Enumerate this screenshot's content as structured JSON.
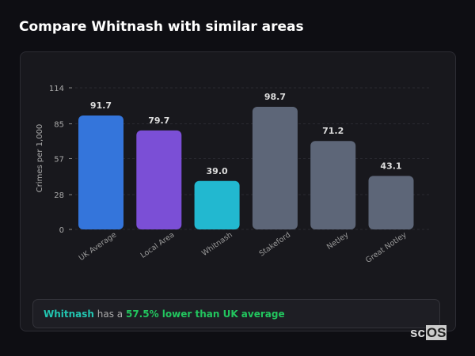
{
  "title": "Compare Whitnash with similar areas",
  "chart_data": {
    "type": "bar",
    "categories": [
      "UK Average",
      "Local Area",
      "Whitnash",
      "Stakeford",
      "Netley",
      "Great Notley"
    ],
    "values": [
      91.7,
      79.7,
      39.0,
      98.7,
      71.2,
      43.1
    ],
    "value_labels": [
      "91.7",
      "79.7",
      "39.0",
      "98.7",
      "71.2",
      "43.1"
    ],
    "colors": [
      "#3475db",
      "#7b4fd6",
      "#22b8d0",
      "#5d6678",
      "#5d6678",
      "#5d6678"
    ],
    "ylabel": "Crimes per 1,000",
    "yticks": [
      0,
      28,
      57,
      85,
      114
    ],
    "ylim": [
      0,
      114
    ],
    "grid": true
  },
  "summary": {
    "area": "Whitnash",
    "text": " has a ",
    "highlight": "57.5% lower than UK average"
  },
  "logo": {
    "prefix": "sc",
    "suffix": "OS"
  }
}
